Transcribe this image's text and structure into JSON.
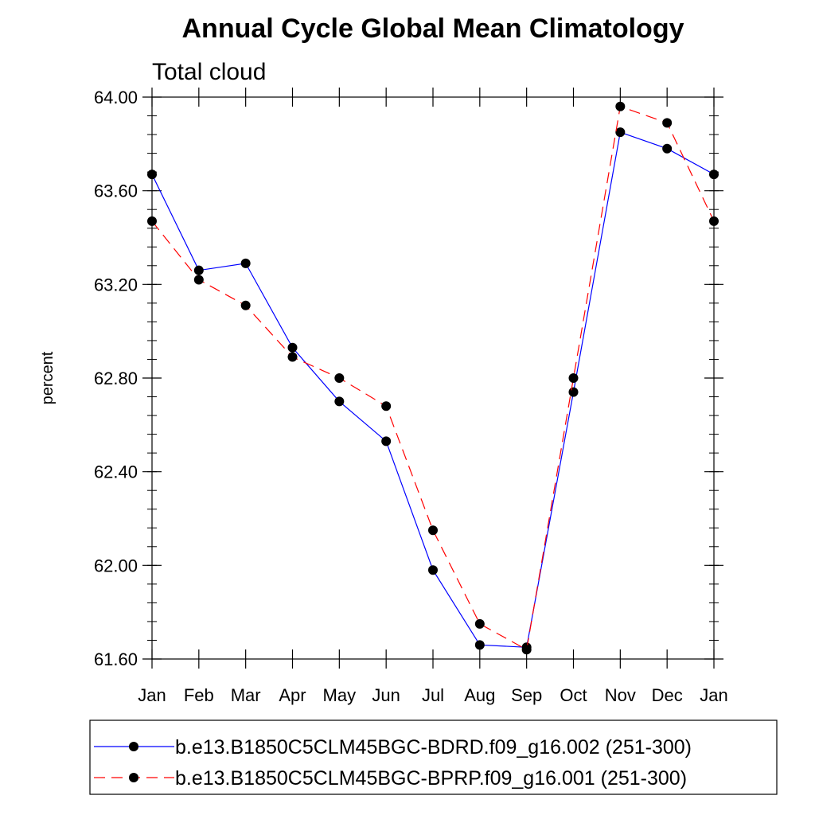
{
  "chart_data": {
    "type": "line",
    "title": "Annual Cycle Global Mean Climatology",
    "subtitle": "Total cloud",
    "xlabel": "",
    "ylabel": "percent",
    "categories": [
      "Jan",
      "Feb",
      "Mar",
      "Apr",
      "May",
      "Jun",
      "Jul",
      "Aug",
      "Sep",
      "Oct",
      "Nov",
      "Dec",
      "Jan"
    ],
    "ylim": [
      61.6,
      64.0
    ],
    "yticks": [
      "61.60",
      "62.00",
      "62.40",
      "62.80",
      "63.20",
      "63.60",
      "64.00"
    ],
    "grid": false,
    "legend_position": "bottom",
    "series": [
      {
        "name": "b.e13.B1850C5CLM45BGC-BDRD.f09_g16.002 (251-300)",
        "color": "#0000ff",
        "dash": "solid",
        "values": [
          63.67,
          63.26,
          63.29,
          62.93,
          62.7,
          62.53,
          61.98,
          61.66,
          61.65,
          62.74,
          63.85,
          63.78,
          63.67
        ]
      },
      {
        "name": "b.e13.B1850C5CLM45BGC-BPRP.f09_g16.001 (251-300)",
        "color": "#ff0000",
        "dash": "dashed",
        "values": [
          63.47,
          63.22,
          63.11,
          62.89,
          62.8,
          62.68,
          62.15,
          61.75,
          61.64,
          62.8,
          63.96,
          63.89,
          63.47
        ]
      }
    ]
  }
}
